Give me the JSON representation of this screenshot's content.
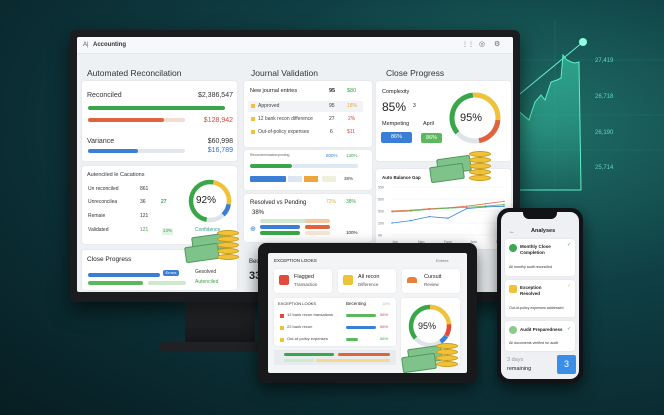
{
  "background_chart": {
    "y_labels": [
      "27,419",
      "26,718",
      "26,190",
      "25,714"
    ],
    "accent": "#3fe0b8"
  },
  "monitor": {
    "app_title": "Accounting",
    "col1": {
      "title": "Automated Reconcilation",
      "reconciled_label": "Reconciled",
      "reconciled_value": "$2,386,547",
      "unreconciled_value": "$128,942",
      "variance_label": "Variance",
      "variance_value": "$60,998",
      "variance_sub": "$16,789",
      "cat_title": "Autenciled le Cacations",
      "rows": [
        {
          "label": "Un reconciled",
          "a": "861",
          "b": ""
        },
        {
          "label": "Unreconcilea",
          "a": "36",
          "b": "27"
        },
        {
          "label": "Remaie",
          "a": "121",
          "b": ""
        },
        {
          "label": "Validated",
          "a": "121",
          "b": "13%"
        }
      ],
      "donut_value": "92%",
      "donut_label": "Confidence",
      "close_title": "Close Progress",
      "close_chip": "Errors",
      "close_l1": "Gesolved",
      "close_l2": "Autenciled"
    },
    "col2": {
      "title": "Journal Validation",
      "rows": [
        {
          "label": "New journal entries",
          "a": "95",
          "b": "$80"
        },
        {
          "label": "Approved",
          "a": "95",
          "b": "18%"
        },
        {
          "label": "12 bank recon difference",
          "a": "27",
          "b": "2%"
        },
        {
          "label": "Out-of-policy expenses",
          "a": "6",
          "b": "$11"
        }
      ],
      "recon_label": "Recondemination/posting",
      "recon_a": "800%",
      "recon_b": "130%",
      "bar_pct": "38%",
      "rvp_title": "Resolved vs Pending",
      "rvp_a": "72%",
      "rvp_b": "38%",
      "rvp_pct": "38%",
      "rvp_end": "100%",
      "bottom_label": "Bec",
      "bottom_value": "33"
    },
    "col3": {
      "title": "Close Progress",
      "complexity_label": "Complexity",
      "complexity_value": "85%",
      "complexity_sub": "3",
      "donut_value": "95%",
      "chip1_label": "Mempeting",
      "chip1_value": "86%",
      "chip2_label": "April",
      "chip2_value": "86%",
      "chart_title": "Auto Balance Gap",
      "chart_data": {
        "type": "line",
        "y_ticks": [
          "550",
          "500",
          "500",
          "200",
          "40"
        ],
        "x_ticks": [
          "Jan",
          "Nan",
          "Fane",
          "Juru",
          "Sume"
        ],
        "series": [
          {
            "color": "#e8704a",
            "values": [
              300,
              310,
              330,
              340,
              360,
              390,
              420
            ]
          },
          {
            "color": "#5cb85c",
            "values": [
              290,
              300,
              320,
              335,
              345,
              360,
              380
            ]
          },
          {
            "color": "#3b82d6",
            "values": [
              150,
              180,
              230,
              210,
              330,
              350,
              360
            ]
          }
        ]
      }
    }
  },
  "tablet": {
    "header": "EXCEPTION LOOKS",
    "header_right": "Entries",
    "cards": [
      {
        "title": "Flagged",
        "sub": "Transaction",
        "color": "#e24b3b"
      },
      {
        "title": "All recon",
        "sub": "Difference",
        "color": "#f0c23a"
      },
      {
        "title": "Cursuit",
        "sub": "Review",
        "color": "#e8803a"
      }
    ],
    "table_title": "EXCEPTION LOOKS",
    "table_col": "Becenting",
    "table_col2": "18%",
    "rows": [
      {
        "label": "12 bank recon transations",
        "pct": "56%",
        "color": "#e24b3b"
      },
      {
        "label": "22 bank recon",
        "pct": "58%",
        "color": "#f0c23a"
      },
      {
        "label": "Out-of-policy expenses",
        "pct": "56%",
        "color": "#f0c23a"
      }
    ],
    "donut_value": "95%"
  },
  "phone": {
    "title": "Analyses",
    "items": [
      {
        "title": "Monthly Close Completion",
        "sub": "All monthy audit reconciled",
        "color": "#3aa855"
      },
      {
        "title": "Exception Resolved",
        "sub": "Out-of-policy expenses addressed",
        "color": "#f0c23a"
      },
      {
        "title": "Audit Preparedness",
        "sub": "All documents verified for audit",
        "color": "#8cc98f"
      }
    ],
    "days_label": "3 days",
    "days_sub": "remaining",
    "days_value": "3"
  }
}
